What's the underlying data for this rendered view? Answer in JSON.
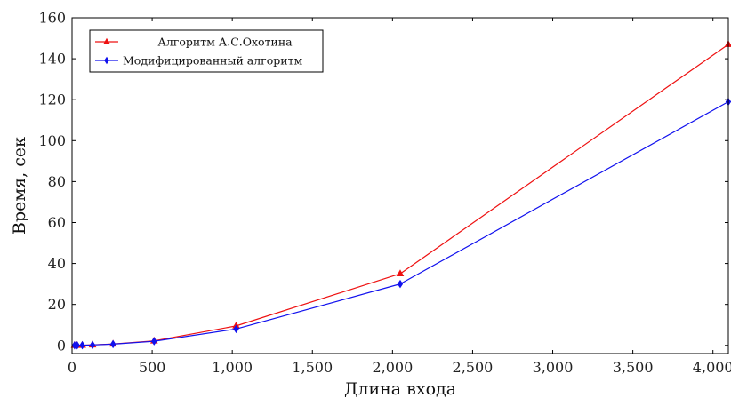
{
  "chart_data": {
    "type": "line",
    "title": "",
    "xlabel": "Длина входа",
    "ylabel": "Время, сек",
    "xlim": [
      0,
      4096
    ],
    "ylim": [
      -4,
      160
    ],
    "x_ticks": [
      0,
      500,
      1000,
      1500,
      2000,
      2500,
      3000,
      3500,
      4000
    ],
    "x_tick_labels": [
      "0",
      "500",
      "1,000",
      "1,500",
      "2,000",
      "2,500",
      "3,000",
      "3,500",
      "4,000"
    ],
    "y_ticks": [
      0,
      20,
      40,
      60,
      80,
      100,
      120,
      140,
      160
    ],
    "y_tick_labels": [
      "0",
      "20",
      "40",
      "60",
      "80",
      "100",
      "120",
      "140",
      "160"
    ],
    "grid": false,
    "legend_position": "top-left",
    "x": [
      16,
      32,
      64,
      128,
      256,
      512,
      1024,
      2048,
      4096
    ],
    "series": [
      {
        "name": "Алгоритм А.С.Охотина",
        "color": "#ee1111",
        "marker": "triangle",
        "values": [
          0.02,
          0.04,
          0.1,
          0.25,
          0.7,
          2.2,
          9.5,
          35,
          147
        ]
      },
      {
        "name": "Модифицированный алгоритм",
        "color": "#1111ee",
        "marker": "diamond",
        "values": [
          0.02,
          0.03,
          0.08,
          0.2,
          0.6,
          2.0,
          8.0,
          30,
          119
        ]
      }
    ]
  }
}
